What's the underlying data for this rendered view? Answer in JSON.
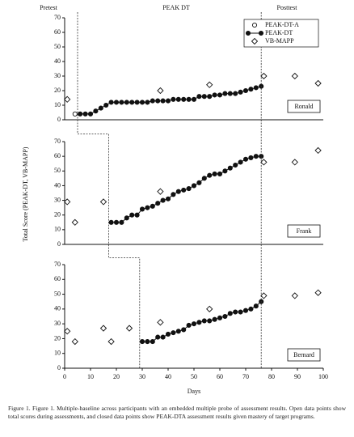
{
  "phase_labels": [
    "Pretest",
    "PEAK DT",
    "Posttest"
  ],
  "y_label": "Total Score (PEAK-DT, VB-MAPP)",
  "x_label": "Days",
  "phase_change_x": [
    5,
    17,
    29
  ],
  "posttest_x": 76,
  "caption": "Figure 1.   Figure 1. Multiple-baseline across participants with an embedded multiple probe of assessment results. Open data points show total scores during assessments, and closed data points show PEAK-DTA assessment results given mastery of target programs.",
  "chart_data": [
    {
      "type": "line",
      "panel": "Ronald",
      "xlim": [
        0,
        100
      ],
      "ylim": [
        0,
        70
      ],
      "yticks": [
        0,
        10,
        20,
        30,
        40,
        50,
        60,
        70
      ],
      "series": [
        {
          "name": "PEAK-DT-A",
          "color": "#111",
          "marker": "circle-open",
          "x": [
            4
          ],
          "values": [
            4
          ]
        },
        {
          "name": "PEAK-DT",
          "color": "#111",
          "marker": "circle",
          "x": [
            6,
            8,
            10,
            12,
            14,
            16,
            18,
            20,
            22,
            24,
            26,
            28,
            30,
            32,
            34,
            36,
            38,
            40,
            42,
            44,
            46,
            48,
            50,
            52,
            54,
            56,
            58,
            60,
            62,
            64,
            66,
            68,
            70,
            72,
            74,
            76
          ],
          "values": [
            4,
            4,
            4,
            6,
            8,
            10,
            12,
            12,
            12,
            12,
            12,
            12,
            12,
            12,
            13,
            13,
            13,
            13,
            14,
            14,
            14,
            14,
            14,
            16,
            16,
            16,
            17,
            17,
            18,
            18,
            18,
            19,
            20,
            21,
            22,
            23
          ]
        },
        {
          "name": "VB-MAPP",
          "color": "#111",
          "marker": "diamond-open",
          "x": [
            1,
            37,
            56,
            77,
            89,
            98
          ],
          "values": [
            14,
            20,
            24,
            30,
            30,
            25
          ]
        }
      ]
    },
    {
      "type": "line",
      "panel": "Frank",
      "xlim": [
        0,
        100
      ],
      "ylim": [
        0,
        70
      ],
      "yticks": [
        0,
        10,
        20,
        30,
        40,
        50,
        60,
        70
      ],
      "series": [
        {
          "name": "PEAK-DT",
          "color": "#111",
          "marker": "circle",
          "x": [
            18,
            20,
            22,
            24,
            26,
            28,
            30,
            32,
            34,
            36,
            38,
            40,
            42,
            44,
            46,
            48,
            50,
            52,
            54,
            56,
            58,
            60,
            62,
            64,
            66,
            68,
            70,
            72,
            74,
            76
          ],
          "values": [
            15,
            15,
            15,
            18,
            20,
            20,
            24,
            25,
            26,
            28,
            30,
            31,
            34,
            36,
            37,
            38,
            40,
            42,
            45,
            47,
            48,
            48,
            50,
            52,
            54,
            56,
            58,
            59,
            60,
            60
          ]
        },
        {
          "name": "VB-MAPP",
          "color": "#111",
          "marker": "diamond-open",
          "x": [
            1,
            4,
            15,
            37,
            77,
            89,
            98
          ],
          "values": [
            29,
            15,
            29,
            36,
            56,
            56,
            64
          ]
        }
      ]
    },
    {
      "type": "line",
      "panel": "Bernard",
      "xlim": [
        0,
        100
      ],
      "ylim": [
        0,
        70
      ],
      "yticks": [
        0,
        10,
        20,
        30,
        40,
        50,
        60,
        70
      ],
      "xticks": [
        0,
        10,
        20,
        30,
        40,
        50,
        60,
        70,
        80,
        90,
        100
      ],
      "series": [
        {
          "name": "PEAK-DT",
          "color": "#111",
          "marker": "circle",
          "x": [
            30,
            32,
            34,
            36,
            38,
            40,
            42,
            44,
            46,
            48,
            50,
            52,
            54,
            56,
            58,
            60,
            62,
            64,
            66,
            68,
            70,
            72,
            74,
            76
          ],
          "values": [
            18,
            18,
            18,
            21,
            21,
            23,
            24,
            25,
            26,
            29,
            30,
            31,
            32,
            32,
            33,
            34,
            35,
            37,
            38,
            38,
            39,
            40,
            42,
            45
          ]
        },
        {
          "name": "VB-MAPP",
          "color": "#111",
          "marker": "diamond-open",
          "x": [
            1,
            4,
            15,
            18,
            25,
            37,
            56,
            77,
            89,
            98
          ],
          "values": [
            25,
            18,
            27,
            18,
            27,
            31,
            40,
            49,
            49,
            51
          ]
        }
      ]
    }
  ]
}
